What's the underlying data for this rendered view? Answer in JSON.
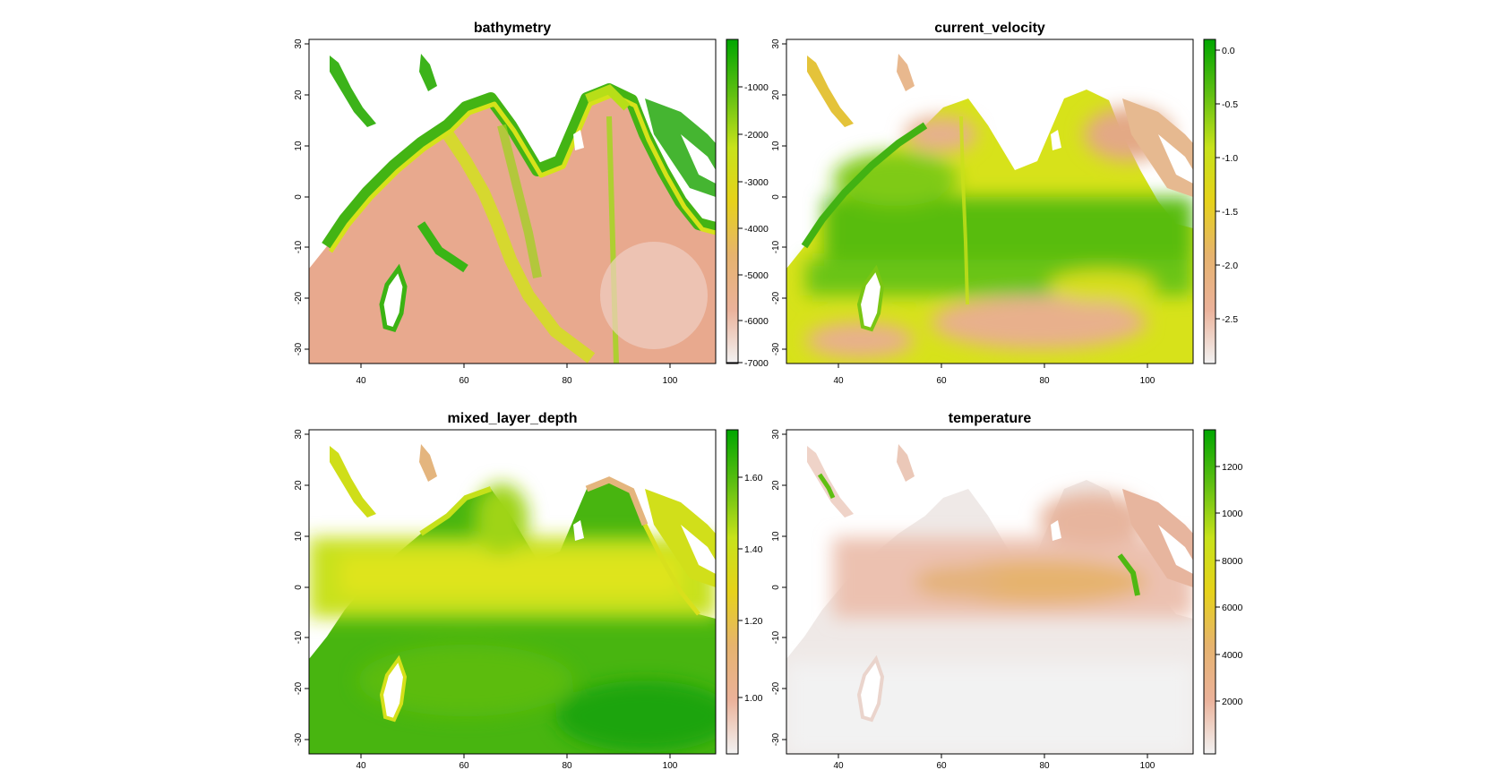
{
  "figure": {
    "panels": [
      {
        "title": "bathymetry",
        "legend_ticks": [
          "-1000",
          "-2000",
          "-3000",
          "-4000",
          "-5000",
          "-6000",
          "-7000"
        ],
        "colors": [
          "#f2f2f2",
          "#ebb29a",
          "#e6b36e",
          "#e6d21a",
          "#c7e21a",
          "#5fbf12",
          "#00a600"
        ]
      },
      {
        "title": "current_velocity",
        "legend_ticks": [
          "0.0",
          "-0.5",
          "-1.0",
          "-1.5",
          "-2.0",
          "-2.5"
        ],
        "colors": [
          "#f2f2f2",
          "#ebb29a",
          "#e6b36e",
          "#e6d21a",
          "#c7e21a",
          "#5fbf12",
          "#00a600"
        ]
      },
      {
        "title": "mixed_layer_depth",
        "legend_ticks": [
          "1.60",
          "1.40",
          "1.20",
          "1.00"
        ],
        "colors": [
          "#f2f2f2",
          "#ebb29a",
          "#e6b36e",
          "#e6d21a",
          "#c7e21a",
          "#5fbf12",
          "#00a600"
        ]
      },
      {
        "title": "temperature",
        "legend_ticks": [
          "1200",
          "1000",
          "8000",
          "6000",
          "4000",
          "2000"
        ],
        "colors": [
          "#f2f2f2",
          "#ebb29a",
          "#e6b36e",
          "#e6d21a",
          "#c7e21a",
          "#5fbf12",
          "#00a600"
        ]
      }
    ],
    "x_ticks": [
      "40",
      "60",
      "80",
      "100"
    ],
    "y_ticks": [
      "30",
      "20",
      "10",
      "0",
      "-10",
      "-20",
      "-30"
    ],
    "x_range": [
      30,
      109
    ],
    "y_range": [
      -33,
      31
    ]
  }
}
